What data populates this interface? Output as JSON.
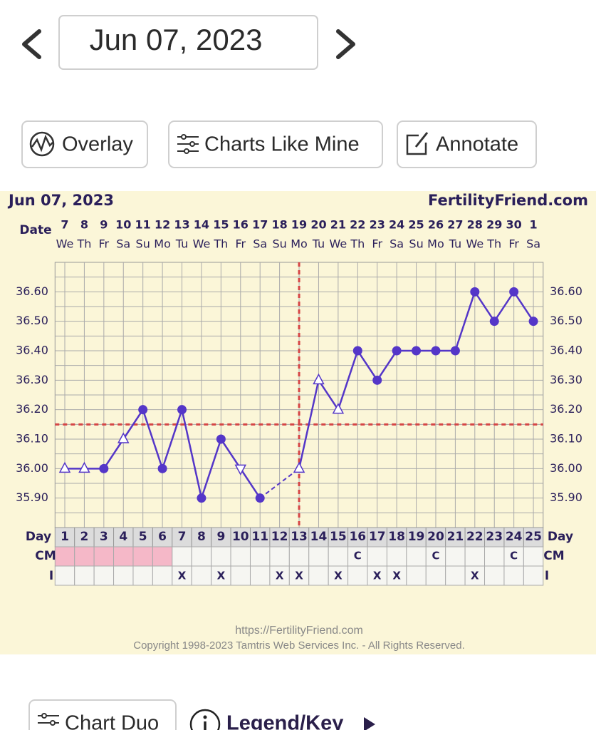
{
  "header": {
    "date": "Jun 07, 2023"
  },
  "toolbar": {
    "buttons": [
      "Overlay",
      "Charts Like Mine",
      "Annotate"
    ]
  },
  "footer": {
    "buttons": [
      "Chart Duo",
      "Legend/Key"
    ]
  },
  "chart_data": {
    "type": "line",
    "title": "Jun 07, 2023",
    "site": "FertilityFriend.com",
    "date_label": "Date",
    "dates": [
      "7",
      "8",
      "9",
      "10",
      "11",
      "12",
      "13",
      "14",
      "15",
      "16",
      "17",
      "18",
      "19",
      "20",
      "21",
      "22",
      "23",
      "24",
      "25",
      "26",
      "27",
      "28",
      "29",
      "30",
      "1"
    ],
    "weekdays": [
      "We",
      "Th",
      "Fr",
      "Sa",
      "Su",
      "Mo",
      "Tu",
      "We",
      "Th",
      "Fr",
      "Sa",
      "Su",
      "Mo",
      "Tu",
      "We",
      "Th",
      "Fr",
      "Sa",
      "Su",
      "Mo",
      "Tu",
      "We",
      "Th",
      "Fr",
      "Sa"
    ],
    "day_label": "Day",
    "days": [
      1,
      2,
      3,
      4,
      5,
      6,
      7,
      8,
      9,
      10,
      11,
      12,
      13,
      14,
      15,
      16,
      17,
      18,
      19,
      20,
      21,
      22,
      23,
      24,
      25
    ],
    "cm_label": "CM",
    "cm": [
      null,
      null,
      null,
      null,
      null,
      null,
      null,
      null,
      null,
      null,
      null,
      null,
      null,
      null,
      null,
      "C",
      null,
      null,
      null,
      "C",
      null,
      null,
      null,
      "C",
      null
    ],
    "intercourse_label": "I",
    "intercourse": [
      null,
      null,
      null,
      null,
      null,
      null,
      "X",
      null,
      "X",
      null,
      null,
      "X",
      "X",
      null,
      "X",
      null,
      "X",
      "X",
      null,
      null,
      null,
      "X",
      null,
      null,
      null
    ],
    "menstruation": [
      true,
      true,
      true,
      true,
      true,
      true,
      false,
      false,
      false,
      false,
      false,
      false,
      false,
      false,
      false,
      false,
      false,
      false,
      false,
      false,
      false,
      false,
      false,
      false,
      false
    ],
    "values": [
      36.0,
      36.0,
      36.0,
      36.1,
      36.2,
      36.0,
      36.2,
      35.9,
      36.1,
      36.0,
      35.9,
      null,
      36.0,
      36.3,
      36.2,
      36.4,
      36.3,
      36.4,
      36.4,
      36.4,
      36.4,
      36.6,
      36.5,
      36.6,
      36.5
    ],
    "markers": [
      "triangle",
      "triangle",
      "circle",
      "triangle",
      "circle",
      "circle",
      "circle",
      "circle",
      "circle",
      "triangle-down",
      "circle",
      null,
      "triangle",
      "triangle",
      "triangle",
      "circle",
      "circle",
      "circle",
      "circle",
      "circle",
      "circle",
      "circle",
      "circle",
      "circle",
      "circle"
    ],
    "color": "#5436c8",
    "ylim": [
      35.8,
      36.7
    ],
    "yticks": [
      {
        "value": 35.9,
        "label": "35.90"
      },
      {
        "value": 36.0,
        "label": "36.00"
      },
      {
        "value": 36.1,
        "label": "36.10"
      },
      {
        "value": 36.2,
        "label": "36.20"
      },
      {
        "value": 36.3,
        "label": "36.30"
      },
      {
        "value": 36.4,
        "label": "36.40"
      },
      {
        "value": 36.5,
        "label": "36.50"
      },
      {
        "value": 36.6,
        "label": "36.60"
      }
    ],
    "grid": true,
    "coverline": 36.15,
    "ovulation_day": 13,
    "source_url": "https://FertilityFriend.com",
    "copyright": "Copyright 1998-2023 Tamtris Web Services Inc. - All Rights Reserved."
  }
}
